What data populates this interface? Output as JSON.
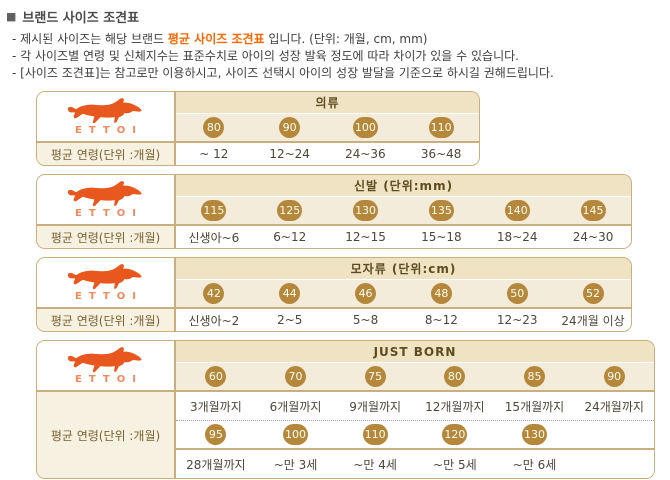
{
  "header": {
    "bullet": "■",
    "title": "브랜드 사이즈 조견표"
  },
  "notes": [
    {
      "pre": "- 제시된 사이즈는 해당 브랜드 ",
      "highlight": "평균 사이즈 조견표",
      "post": " 입니다.  (단위: 개월, cm, mm)"
    },
    {
      "pre": "- 각 사이즈별 연령 및 신체지수는 표준수치로 아이의 성장 발육 정도에 따라 차이가 있을 수 있습니다.",
      "highlight": "",
      "post": ""
    },
    {
      "pre": "- [사이즈 조견표]는 참고로만 이용하시고, 사이즈 선택시 아이의 성장 발달을 기준으로 하시길 권해드립니다.",
      "highlight": "",
      "post": ""
    }
  ],
  "brand": {
    "name": "ETTOI",
    "logo": "galloping-horse"
  },
  "row_label": "평균 연령(단위 :개월)",
  "tables": [
    {
      "id": "clothing",
      "title": "의류",
      "rows": [
        {
          "sizes": [
            "80",
            "90",
            "100",
            "110"
          ],
          "ages": [
            "~ 12",
            "12~24",
            "24~36",
            "36~48"
          ]
        }
      ]
    },
    {
      "id": "shoes",
      "title": "신발 (단위:mm)",
      "rows": [
        {
          "sizes": [
            "115",
            "125",
            "130",
            "135",
            "140",
            "145"
          ],
          "ages": [
            "신생아~6",
            "6~12",
            "12~15",
            "15~18",
            "18~24",
            "24~30"
          ]
        }
      ]
    },
    {
      "id": "hats",
      "title": "모자류 (단위:cm)",
      "rows": [
        {
          "sizes": [
            "42",
            "44",
            "46",
            "48",
            "50",
            "52"
          ],
          "ages": [
            "신생아~2",
            "2~5",
            "5~8",
            "8~12",
            "12~23",
            "24개월 이상"
          ]
        }
      ]
    },
    {
      "id": "just-born",
      "title": "JUST BORN",
      "rows": [
        {
          "sizes": [
            "60",
            "70",
            "75",
            "80",
            "85",
            "90"
          ],
          "ages": [
            "3개월까지",
            "6개월까지",
            "9개월까지",
            "12개월까지",
            "15개월까지",
            "24개월까지"
          ]
        },
        {
          "sizes": [
            "95",
            "100",
            "110",
            "120",
            "130",
            ""
          ],
          "ages": [
            "28개월까지",
            "~만 3세",
            "~만 4세",
            "~만 5세",
            "~만 6세",
            ""
          ]
        }
      ]
    }
  ],
  "colors": {
    "highlight": "#ff6600",
    "badge": "#b5873b",
    "table_border": "#c9af7d",
    "band_bg": "#f0e3c3",
    "cream_bg": "#f4ecda",
    "label_bg": "#f7f1e2",
    "logo_orange": "#e8571e"
  }
}
